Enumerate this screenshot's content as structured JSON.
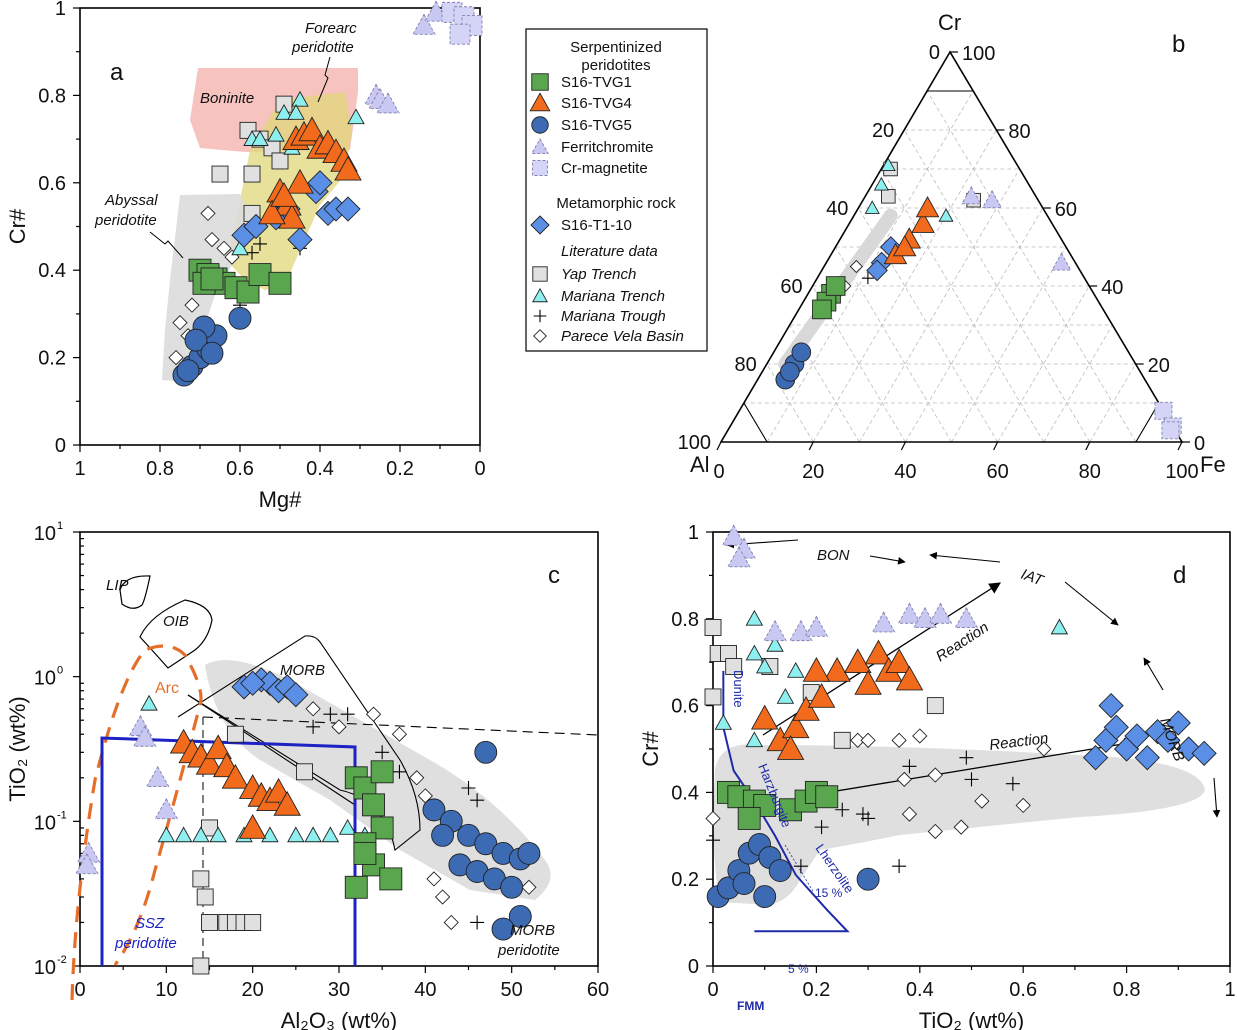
{
  "colors": {
    "tvg1": "#5aa64f",
    "tvg4": "#f26a1b",
    "tvg5": "#3d6bb3",
    "ferritchromite": "#c8c8f2",
    "crmagnetite": "#d4d4f6",
    "t1_10": "#5b8fe6",
    "yap": "#e0e0e0",
    "mariana_trench": "#8ef0ee",
    "boninite_field": "#f5b8b4",
    "forearc_field": "#e0d77a",
    "abyssal_field": "#dcdcdc",
    "arc_line": "#e56f2a",
    "ssz_box": "#1d22c4",
    "fmm_curve": "#1e2aa8"
  },
  "legend": {
    "group1_title_1": "Serpentinized",
    "group1_title_2": "peridotites",
    "items1": [
      "S16-TVG1",
      "S16-TVG4",
      "S16-TVG5",
      "Ferritchromite",
      "Cr-magnetite"
    ],
    "group2_title": "Metamorphic rock",
    "items2": [
      "S16-T1-10"
    ],
    "group3_title": "Literature data",
    "items3": [
      "Yap Trench",
      "Mariana Trench",
      "Mariana Trough",
      "Parece Vela Basin"
    ]
  },
  "chart_data": [
    {
      "panel": "a",
      "type": "scatter",
      "xlabel": "Mg#",
      "ylabel": "Cr#",
      "xlim": [
        1,
        0
      ],
      "ylim": [
        0,
        1
      ],
      "xticks": [
        "1",
        "0.8",
        "0.6",
        "0.4",
        "0.2",
        "0"
      ],
      "yticks": [
        "0",
        "0.2",
        "0.4",
        "0.6",
        "0.8",
        "1"
      ],
      "fields": [
        "Boninite",
        "Forearc peridotite",
        "Abyssal peridotite"
      ],
      "series": [
        {
          "name": "S16-TVG1",
          "x": [
            0.7,
            0.68,
            0.66,
            0.64,
            0.61,
            0.58,
            0.55,
            0.5,
            0.69,
            0.67
          ],
          "y": [
            0.4,
            0.39,
            0.38,
            0.37,
            0.36,
            0.35,
            0.39,
            0.37,
            0.37,
            0.38
          ]
        },
        {
          "name": "S16-TVG4",
          "x": [
            0.46,
            0.44,
            0.42,
            0.4,
            0.38,
            0.36,
            0.34,
            0.33,
            0.5,
            0.48,
            0.47,
            0.45,
            0.52,
            0.49
          ],
          "y": [
            0.7,
            0.71,
            0.72,
            0.68,
            0.69,
            0.67,
            0.65,
            0.63,
            0.58,
            0.55,
            0.52,
            0.6,
            0.53,
            0.57
          ]
        },
        {
          "name": "S16-TVG5",
          "x": [
            0.74,
            0.72,
            0.7,
            0.68,
            0.66,
            0.69,
            0.71,
            0.67,
            0.6,
            0.73
          ],
          "y": [
            0.16,
            0.18,
            0.2,
            0.22,
            0.25,
            0.27,
            0.24,
            0.21,
            0.29,
            0.17
          ]
        },
        {
          "name": "Ferritchromite",
          "x": [
            0.14,
            0.11,
            0.26,
            0.25,
            0.23
          ],
          "y": [
            0.96,
            0.99,
            0.8,
            0.79,
            0.78
          ]
        },
        {
          "name": "Cr-magnetite",
          "x": [
            0.07,
            0.04,
            0.02,
            0.05
          ],
          "y": [
            0.99,
            0.98,
            0.96,
            0.94
          ]
        },
        {
          "name": "S16-T1-10",
          "x": [
            0.59,
            0.56,
            0.51,
            0.48,
            0.41,
            0.38,
            0.36,
            0.33,
            0.45,
            0.4
          ],
          "y": [
            0.48,
            0.5,
            0.52,
            0.54,
            0.58,
            0.53,
            0.54,
            0.54,
            0.47,
            0.6
          ]
        },
        {
          "name": "Yap Trench",
          "x": [
            0.58,
            0.55,
            0.52,
            0.5,
            0.49,
            0.57,
            0.65,
            0.57
          ],
          "y": [
            0.72,
            0.7,
            0.68,
            0.65,
            0.78,
            0.62,
            0.62,
            0.53
          ]
        },
        {
          "name": "Mariana Trench",
          "x": [
            0.45,
            0.49,
            0.46,
            0.57,
            0.55,
            0.51,
            0.47,
            0.31,
            0.6
          ],
          "y": [
            0.79,
            0.76,
            0.76,
            0.7,
            0.7,
            0.71,
            0.68,
            0.75,
            0.45
          ]
        },
        {
          "name": "Mariana Trough",
          "x": [
            0.57,
            0.55,
            0.45,
            0.6
          ],
          "y": [
            0.44,
            0.46,
            0.45,
            0.32
          ]
        },
        {
          "name": "Parece Vela Basin",
          "x": [
            0.68,
            0.67,
            0.64,
            0.62,
            0.72,
            0.75,
            0.76,
            0.73
          ],
          "y": [
            0.53,
            0.47,
            0.45,
            0.43,
            0.32,
            0.28,
            0.2,
            0.25
          ]
        }
      ]
    },
    {
      "panel": "b",
      "type": "scatter",
      "ternary": true,
      "apex_labels": {
        "top": "Cr",
        "left": "Al",
        "right": "Fe"
      },
      "left_ticks": [
        "0",
        "20",
        "40",
        "60",
        "80",
        "100"
      ],
      "right_ticks": [
        "100",
        "80",
        "60",
        "40",
        "20",
        "0"
      ],
      "bottom_ticks": [
        "0",
        "20",
        "40",
        "60",
        "80",
        "100"
      ],
      "note": "values as [Cr, Al, Fe] percentages",
      "series": [
        {
          "name": "S16-TVG1",
          "points": [
            [
              38,
              57,
              5
            ],
            [
              36,
              59,
              5
            ],
            [
              40,
              55,
              5
            ],
            [
              34,
              61,
              5
            ]
          ]
        },
        {
          "name": "S16-TVG4",
          "points": [
            [
              52,
              33,
              15
            ],
            [
              56,
              28,
              16
            ],
            [
              60,
              25,
              15
            ],
            [
              48,
              38,
              14
            ],
            [
              50,
              35,
              15
            ]
          ]
        },
        {
          "name": "S16-TVG5",
          "points": [
            [
              16,
              78,
              6
            ],
            [
              20,
              74,
              6
            ],
            [
              23,
              71,
              6
            ],
            [
              18,
              76,
              6
            ]
          ]
        },
        {
          "name": "Ferritchromite",
          "points": [
            [
              63,
              14,
              23
            ],
            [
              62,
              10,
              28
            ],
            [
              46,
              3,
              51
            ]
          ]
        },
        {
          "name": "Cr-magnetite",
          "points": [
            [
              8,
              0,
              92
            ],
            [
              4,
              0,
              96
            ],
            [
              3,
              1,
              96
            ]
          ]
        },
        {
          "name": "S16-T1-10",
          "points": [
            [
              46,
              42,
              12
            ],
            [
              50,
              38,
              12
            ],
            [
              44,
              44,
              12
            ]
          ]
        },
        {
          "name": "Yap Trench",
          "points": [
            [
              70,
              28,
              2
            ],
            [
              63,
              32,
              5
            ],
            [
              62,
              14,
              24
            ]
          ]
        },
        {
          "name": "Mariana Trench",
          "points": [
            [
              71,
              28,
              1
            ],
            [
              66,
              32,
              2
            ],
            [
              60,
              37,
              3
            ],
            [
              58,
              22,
              20
            ]
          ]
        },
        {
          "name": "Mariana Trough",
          "points": [
            [
              42,
              47,
              11
            ]
          ]
        },
        {
          "name": "Parece Vela Basin",
          "points": [
            [
              45,
              48,
              7
            ],
            [
              40,
              53,
              7
            ]
          ]
        }
      ]
    },
    {
      "panel": "c",
      "type": "scatter",
      "xlabel": "Al2O3 (wt%)",
      "ylabel": "TiO2 (wt%)",
      "xlim": [
        0,
        60
      ],
      "ylim_log10": [
        -2,
        1
      ],
      "yscale": "log",
      "xticks": [
        "0",
        "10",
        "20",
        "30",
        "40",
        "50",
        "60"
      ],
      "yticks": [
        "10^-2",
        "10^-1",
        "10^0",
        "10^1"
      ],
      "fields": [
        "LIP",
        "OIB",
        "MORB",
        "Arc",
        "SSZ peridotite",
        "MORB peridotite"
      ],
      "series": [
        {
          "name": "S16-TVG1",
          "x": [
            32,
            33,
            34,
            35,
            33,
            34,
            36,
            32,
            33,
            35
          ],
          "y": [
            0.2,
            0.17,
            0.13,
            0.09,
            0.07,
            0.05,
            0.04,
            0.035,
            0.06,
            0.22
          ]
        },
        {
          "name": "S16-TVG4",
          "x": [
            12,
            13,
            14,
            15,
            16,
            17,
            18,
            20,
            21,
            22,
            23,
            24,
            20
          ],
          "y": [
            0.35,
            0.3,
            0.28,
            0.25,
            0.32,
            0.24,
            0.2,
            0.17,
            0.15,
            0.14,
            0.16,
            0.13,
            0.09
          ]
        },
        {
          "name": "S16-TVG5",
          "x": [
            41,
            43,
            45,
            47,
            49,
            51,
            44,
            46,
            48,
            50,
            52,
            42,
            47,
            51,
            49
          ],
          "y": [
            0.12,
            0.1,
            0.08,
            0.07,
            0.06,
            0.055,
            0.05,
            0.045,
            0.04,
            0.035,
            0.06,
            0.08,
            0.3,
            0.022,
            0.018
          ]
        },
        {
          "name": "Ferritchromite",
          "x": [
            7,
            7.5,
            9,
            10,
            1,
            0.8
          ],
          "y": [
            0.45,
            0.38,
            0.2,
            0.12,
            0.06,
            0.05
          ]
        },
        {
          "name": "S16-T1-10",
          "x": [
            19,
            21,
            22,
            23,
            24,
            25,
            20
          ],
          "y": [
            0.85,
            0.95,
            0.9,
            0.8,
            0.85,
            0.75,
            0.9
          ]
        },
        {
          "name": "Yap Trench",
          "x": [
            15,
            14,
            14.5,
            15,
            17,
            18,
            19,
            20,
            14,
            18,
            26
          ],
          "y": [
            0.09,
            0.04,
            0.03,
            0.02,
            0.02,
            0.02,
            0.02,
            0.02,
            0.01,
            0.4,
            0.22
          ]
        },
        {
          "name": "Mariana Trench",
          "x": [
            8,
            10,
            12,
            14,
            16,
            19,
            22,
            25,
            27,
            29,
            31,
            33
          ],
          "y": [
            0.65,
            0.08,
            0.08,
            0.08,
            0.08,
            0.08,
            0.08,
            0.08,
            0.08,
            0.08,
            0.09,
            0.08
          ]
        },
        {
          "name": "Mariana Trough",
          "x": [
            29,
            31,
            27,
            35,
            37,
            45,
            46,
            46
          ],
          "y": [
            0.55,
            0.55,
            0.45,
            0.3,
            0.22,
            0.17,
            0.14,
            0.02
          ]
        },
        {
          "name": "Parece Vela Basin",
          "x": [
            27,
            30,
            34,
            37,
            39,
            40,
            41,
            42,
            43,
            52
          ],
          "y": [
            0.6,
            0.45,
            0.55,
            0.4,
            0.2,
            0.15,
            0.04,
            0.03,
            0.02,
            0.035
          ]
        }
      ]
    },
    {
      "panel": "d",
      "type": "scatter",
      "xlabel": "TiO2 (wt%)",
      "ylabel": "Cr#",
      "xlim": [
        0,
        1
      ],
      "ylim": [
        0,
        1
      ],
      "xticks": [
        "0",
        "0.2",
        "0.4",
        "0.6",
        "0.8",
        "1"
      ],
      "yticks": [
        "0",
        "0.2",
        "0.4",
        "0.6",
        "0.8",
        "1"
      ],
      "annotations": [
        "BON",
        "IAT",
        "MORB",
        "Reaction",
        "Reaction",
        "Dunite",
        "Harzburgite",
        "Lherzolite",
        "15 %",
        "5 %",
        "FMM"
      ],
      "fmm_melting_curve": {
        "x": [
          0.08,
          0.26,
          0.22,
          0.16,
          0.12,
          0.08,
          0.04,
          0.02,
          0.02
        ],
        "y": [
          0.08,
          0.08,
          0.13,
          0.21,
          0.3,
          0.38,
          0.45,
          0.55,
          0.68
        ]
      },
      "series": [
        {
          "name": "S16-TVG1",
          "x": [
            0.03,
            0.05,
            0.08,
            0.1,
            0.15,
            0.18,
            0.2,
            0.22,
            0.07
          ],
          "y": [
            0.4,
            0.39,
            0.38,
            0.37,
            0.36,
            0.38,
            0.4,
            0.39,
            0.34
          ]
        },
        {
          "name": "S16-TVG4",
          "x": [
            0.1,
            0.13,
            0.16,
            0.18,
            0.21,
            0.24,
            0.28,
            0.3,
            0.32,
            0.34,
            0.36,
            0.38,
            0.2,
            0.15
          ],
          "y": [
            0.57,
            0.52,
            0.55,
            0.59,
            0.62,
            0.68,
            0.7,
            0.65,
            0.72,
            0.68,
            0.7,
            0.66,
            0.68,
            0.5
          ]
        },
        {
          "name": "S16-TVG5",
          "x": [
            0.01,
            0.03,
            0.05,
            0.07,
            0.09,
            0.11,
            0.13,
            0.06,
            0.1,
            0.3
          ],
          "y": [
            0.16,
            0.18,
            0.22,
            0.26,
            0.28,
            0.25,
            0.22,
            0.19,
            0.16,
            0.2
          ]
        },
        {
          "name": "Ferritchromite",
          "x": [
            0.04,
            0.06,
            0.05,
            0.12,
            0.17,
            0.2,
            0.33,
            0.38,
            0.41,
            0.44,
            0.49
          ],
          "y": [
            0.99,
            0.96,
            0.94,
            0.77,
            0.77,
            0.78,
            0.79,
            0.81,
            0.8,
            0.81,
            0.8
          ]
        },
        {
          "name": "S16-T1-10",
          "x": [
            0.74,
            0.76,
            0.78,
            0.8,
            0.82,
            0.84,
            0.86,
            0.88,
            0.9,
            0.92,
            0.95,
            0.77
          ],
          "y": [
            0.48,
            0.52,
            0.55,
            0.5,
            0.53,
            0.48,
            0.54,
            0.52,
            0.56,
            0.5,
            0.49,
            0.6
          ]
        },
        {
          "name": "Yap Trench",
          "x": [
            0.0,
            0.01,
            0.03,
            0.04,
            0.11,
            0.19,
            0.43,
            0.25,
            0.0
          ],
          "y": [
            0.78,
            0.72,
            0.72,
            0.69,
            0.69,
            0.63,
            0.6,
            0.52,
            0.62
          ]
        },
        {
          "name": "Mariana Trench",
          "x": [
            0.08,
            0.12,
            0.14,
            0.08,
            0.1,
            0.16,
            0.02,
            0.08,
            0.67
          ],
          "y": [
            0.8,
            0.74,
            0.62,
            0.72,
            0.69,
            0.68,
            0.56,
            0.52,
            0.78
          ]
        },
        {
          "name": "Mariana Trough",
          "x": [
            0.0,
            0.17,
            0.21,
            0.29,
            0.36,
            0.38,
            0.49,
            0.5,
            0.58,
            0.25,
            0.3
          ],
          "y": [
            0.29,
            0.23,
            0.32,
            0.35,
            0.23,
            0.46,
            0.48,
            0.43,
            0.42,
            0.36,
            0.34
          ]
        },
        {
          "name": "Parece Vela Basin",
          "x": [
            0.0,
            0.28,
            0.3,
            0.36,
            0.37,
            0.4,
            0.43,
            0.48,
            0.52,
            0.6,
            0.64,
            0.43,
            0.38
          ],
          "y": [
            0.34,
            0.52,
            0.52,
            0.52,
            0.43,
            0.53,
            0.31,
            0.32,
            0.38,
            0.37,
            0.5,
            0.44,
            0.35
          ]
        }
      ]
    }
  ]
}
